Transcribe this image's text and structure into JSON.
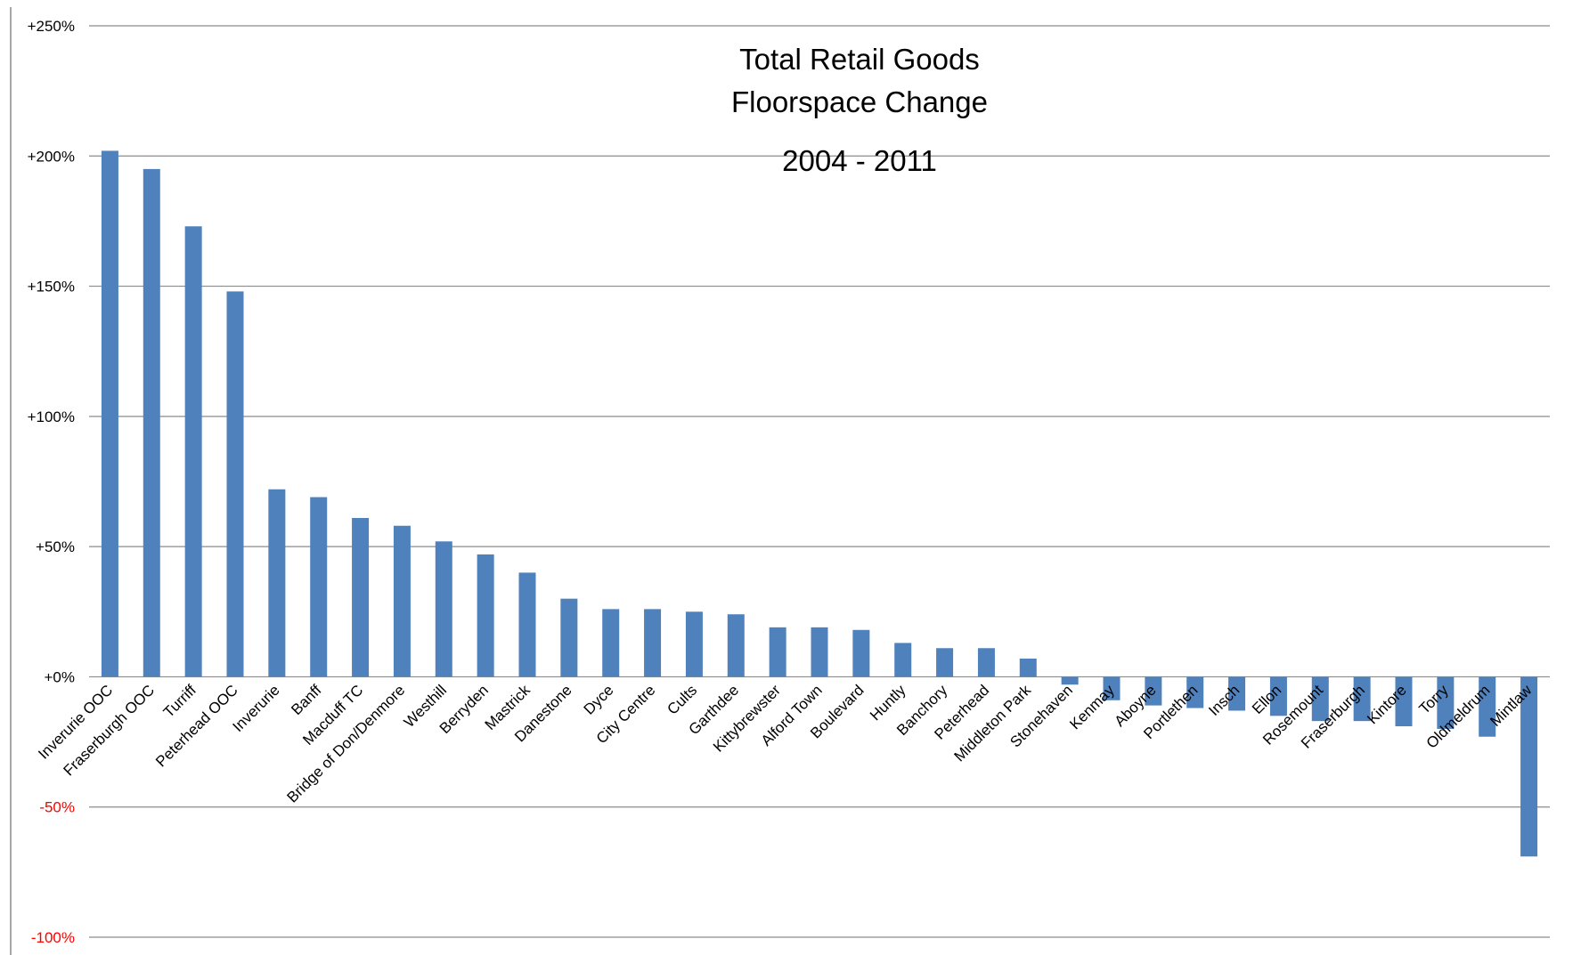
{
  "chart_data": {
    "type": "bar",
    "title_lines": [
      "Total Retail Goods",
      "Floorspace Change"
    ],
    "subtitle": "2004 - 2011",
    "xlabel": "",
    "ylabel": "",
    "ylim": [
      -100,
      250
    ],
    "y_ticks": [
      250,
      200,
      150,
      100,
      50,
      0,
      -50,
      -100
    ],
    "y_tick_labels": [
      "+250%",
      "+200%",
      "+150%",
      "+100%",
      "+50%",
      "+0%",
      "-50%",
      "-100%"
    ],
    "grid": true,
    "legend": "none",
    "categories": [
      "Inverurie OOC",
      "Fraserburgh OOC",
      "Turriff",
      "Peterhead OOC",
      "Inverurie",
      "Banff",
      "Macduff TC",
      "Bridge of Don/Denmore",
      "Westhill",
      "Berryden",
      "Mastrick",
      "Danestone",
      "Dyce",
      "City Centre",
      "Cults",
      "Garthdee",
      "Kittybrewster",
      "Alford Town",
      "Boulevard",
      "Huntly",
      "Banchory",
      "Peterhead",
      "Middleton Park",
      "Stonehaven",
      "Kenmay",
      "Aboyne",
      "Portlethen",
      "Insch",
      "Ellon",
      "Rosemount",
      "Fraserburgh",
      "Kintore",
      "Torry",
      "Oldmeldrum",
      "Mintlaw"
    ],
    "values": [
      202,
      195,
      173,
      148,
      72,
      69,
      61,
      58,
      52,
      47,
      40,
      30,
      26,
      26,
      25,
      24,
      19,
      19,
      18,
      13,
      11,
      11,
      7,
      -3,
      -9,
      -11,
      -12,
      -13,
      -15,
      -17,
      -17,
      -19,
      -20,
      -23,
      -69
    ]
  },
  "colors": {
    "bar": "#4f81bd",
    "grid": "#8c8c8c",
    "positive_tick": "#000000",
    "negative_tick": "#ff0000"
  }
}
